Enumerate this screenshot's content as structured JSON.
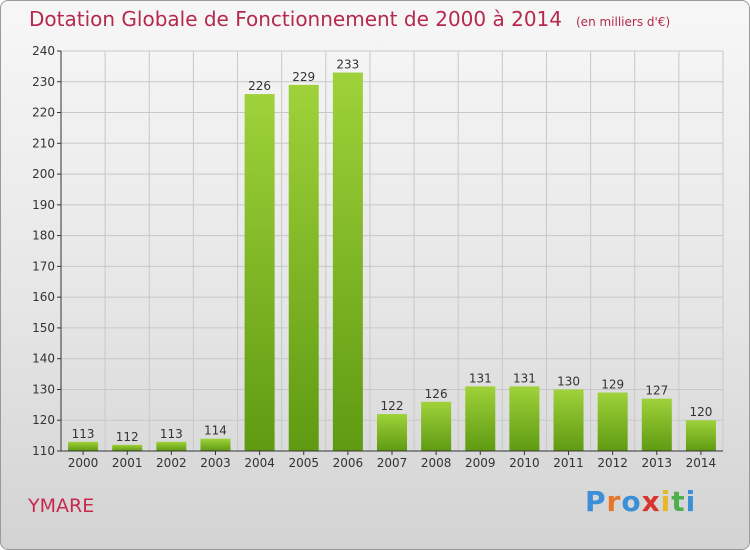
{
  "title": "Dotation Globale de Fonctionnement de 2000 à 2014",
  "subtitle": "(en milliers d'€)",
  "commune": "YMARE",
  "brand": "Proxiti",
  "colors": {
    "title": "#b5294f",
    "bar_light": "#9fd23a",
    "bar_dark": "#5f9a12",
    "grid": "#c8c8c8",
    "axis": "#333333",
    "label": "#333333"
  },
  "chart_data": {
    "type": "bar",
    "title": "Dotation Globale de Fonctionnement de 2000 à 2014",
    "subtitle": "(en milliers d'€)",
    "categories": [
      "2000",
      "2001",
      "2002",
      "2003",
      "2004",
      "2005",
      "2006",
      "2007",
      "2008",
      "2009",
      "2010",
      "2011",
      "2012",
      "2013",
      "2014"
    ],
    "values": [
      113,
      112,
      113,
      114,
      226,
      229,
      233,
      122,
      126,
      131,
      131,
      130,
      129,
      127,
      120
    ],
    "ylim": [
      110,
      240
    ],
    "yticks": [
      110,
      120,
      130,
      140,
      150,
      160,
      170,
      180,
      190,
      200,
      210,
      220,
      230,
      240
    ],
    "grid": true,
    "show_data_labels": true
  }
}
